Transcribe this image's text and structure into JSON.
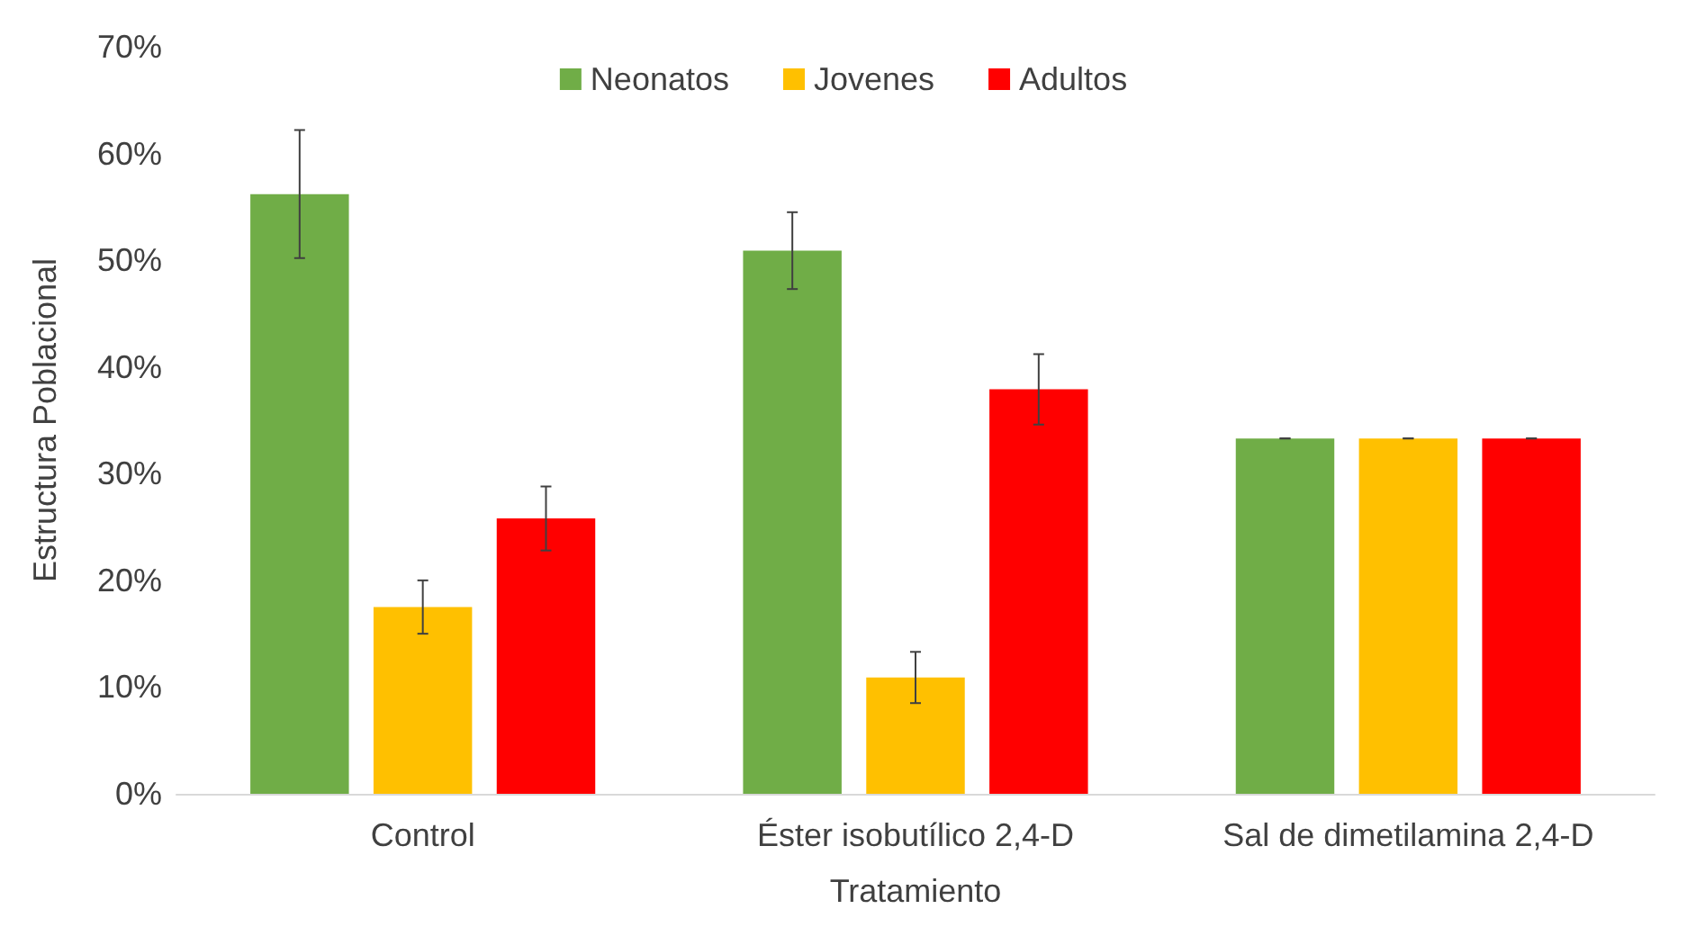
{
  "chart_data": {
    "type": "bar",
    "xlabel": "Tratamiento",
    "ylabel": "Estructura Poblacional",
    "categories": [
      "Control",
      "Éster isobutílico 2,4-D",
      "Sal de dimetilamina 2,4-D"
    ],
    "series": [
      {
        "name": "Neonatos",
        "color": "#70ad47",
        "values": [
          56.2,
          50.9,
          33.3
        ],
        "errors": [
          6,
          3.6,
          0
        ]
      },
      {
        "name": "Jovenes",
        "color": "#ffc000",
        "values": [
          17.5,
          10.9,
          33.3
        ],
        "errors": [
          2.5,
          2.4,
          0
        ]
      },
      {
        "name": "Adultos",
        "color": "#ff0000",
        "values": [
          25.8,
          37.9,
          33.3
        ],
        "errors": [
          3,
          3.3,
          0
        ]
      }
    ],
    "ylim": [
      0,
      70
    ],
    "yticks": [
      {
        "value": 0,
        "label": "0%"
      },
      {
        "value": 10,
        "label": "10%"
      },
      {
        "value": 20,
        "label": "20%"
      },
      {
        "value": 30,
        "label": "30%"
      },
      {
        "value": 40,
        "label": "40%"
      },
      {
        "value": 50,
        "label": "50%"
      },
      {
        "value": 60,
        "label": "60%"
      },
      {
        "value": 70,
        "label": "70%"
      }
    ],
    "grid": false,
    "legend": "top"
  }
}
